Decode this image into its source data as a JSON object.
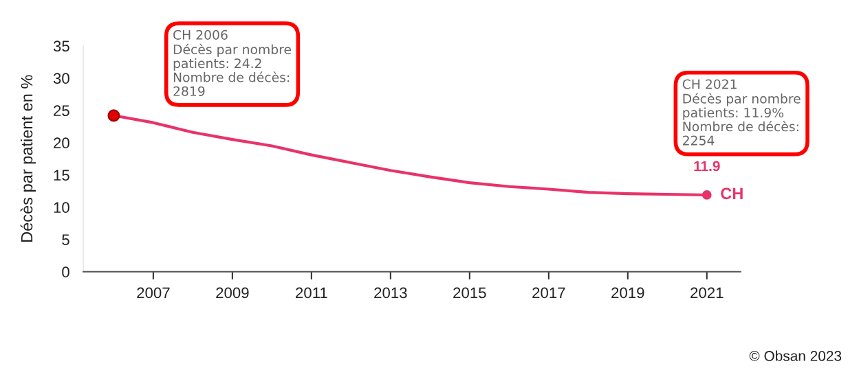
{
  "chart_data": {
    "type": "line",
    "ylabel": "Décès par patient en %",
    "xlim": [
      2005.23,
      2021.85
    ],
    "xticks": [
      2007,
      2009,
      2011,
      2013,
      2015,
      2017,
      2019,
      2021
    ],
    "ylim": [
      0,
      35
    ],
    "yticks": [
      0,
      5,
      10,
      15,
      20,
      25,
      30,
      35
    ],
    "grid": false,
    "legend": false,
    "series": [
      {
        "name": "CH",
        "color": "#e8336a",
        "x": [
          2006,
          2007,
          2008,
          2009,
          2010,
          2011,
          2012,
          2013,
          2014,
          2015,
          2016,
          2017,
          2018,
          2019,
          2020,
          2021
        ],
        "values": [
          24.2,
          23.1,
          21.6,
          20.5,
          19.5,
          18.1,
          16.9,
          15.7,
          14.7,
          13.8,
          13.2,
          12.8,
          12.3,
          12.1,
          12.0,
          11.9
        ],
        "value_labels": [
          null,
          null,
          null,
          null,
          null,
          null,
          null,
          null,
          null,
          null,
          null,
          null,
          null,
          null,
          null,
          "11.9"
        ]
      },
      {
        "type": "scatter",
        "x": [
          2006,
          2021
        ],
        "values": [
          24.2,
          11.9
        ],
        "colors": [
          "#e00000",
          "#e8336a"
        ]
      }
    ],
    "annotations": [
      "CH 2006\nDécès par nombre\npatients: 24.2\nNombre de décès:\n2819",
      "CH 2021\nDécès par nombre\npatients: 11.9%\nNombre de décès:\n2254",
      "© Obsan 2023"
    ]
  }
}
